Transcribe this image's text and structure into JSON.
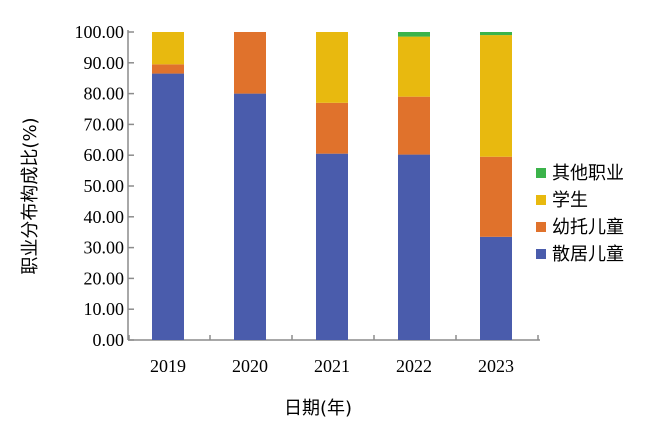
{
  "chart_data": {
    "type": "bar",
    "stacked": true,
    "title": "",
    "xlabel": "日期(年)",
    "ylabel": "职业分布构成比(%)",
    "ylim": [
      0,
      100
    ],
    "y_ticks": [
      "0.00",
      "10.00",
      "20.00",
      "30.00",
      "40.00",
      "50.00",
      "60.00",
      "70.00",
      "80.00",
      "90.00",
      "100.00"
    ],
    "categories": [
      "2019",
      "2020",
      "2021",
      "2022",
      "2023"
    ],
    "series": [
      {
        "name": "散居儿童",
        "color": "#4a5cac",
        "values": [
          86.5,
          80.0,
          60.5,
          60.2,
          33.5
        ]
      },
      {
        "name": "幼托儿童",
        "color": "#e0722c",
        "values": [
          3.0,
          20.0,
          16.5,
          18.8,
          26.0
        ]
      },
      {
        "name": "学生",
        "color": "#e8b90f",
        "values": [
          10.5,
          0.0,
          23.0,
          19.5,
          39.5
        ]
      },
      {
        "name": "其他职业",
        "color": "#3bb34a",
        "values": [
          0.0,
          0.0,
          0.0,
          1.5,
          1.0
        ]
      }
    ],
    "legend_position": "right",
    "grid": false
  }
}
